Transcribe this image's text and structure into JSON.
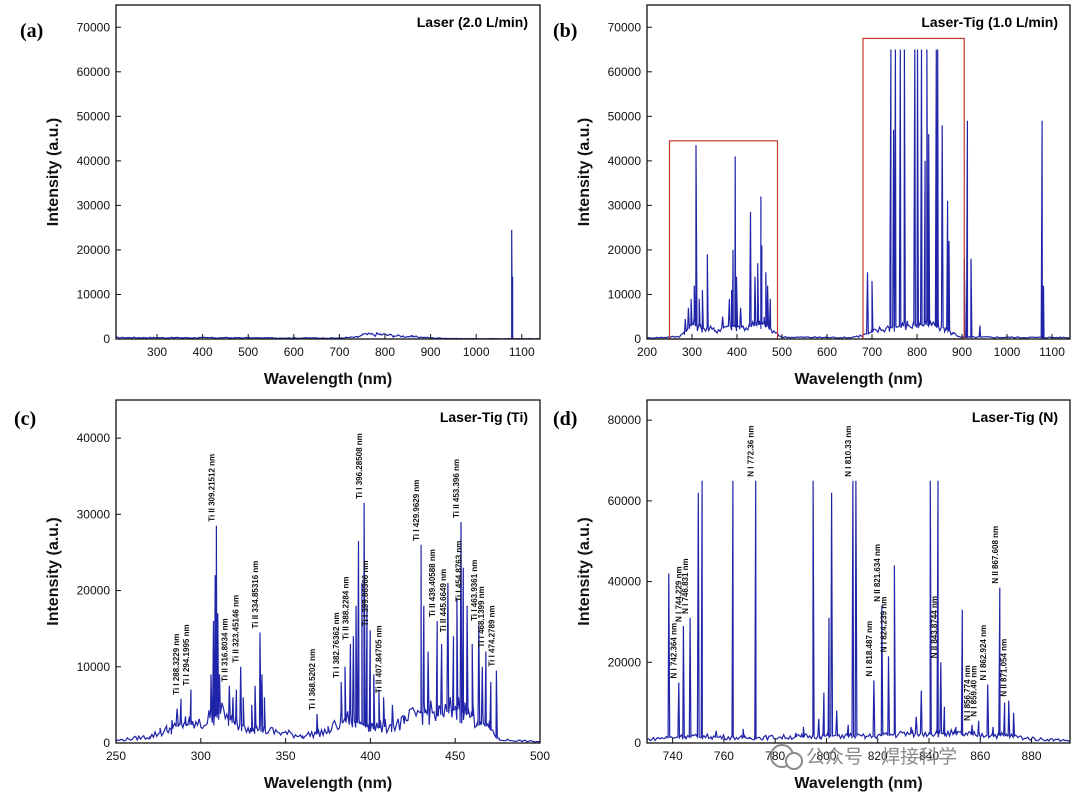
{
  "watermark": "公众号 · 焊接科学",
  "colors": {
    "line": "#1f24a8",
    "box": "#c0392b",
    "axis": "#111111",
    "watermark": "#8a8a8a"
  },
  "chart_data": [
    {
      "letter": "(a)",
      "type": "line",
      "title": "Laser (2.0 L/min)",
      "xlabel": "Wavelength (nm)",
      "ylabel": "Intensity (a.u.)",
      "xlim": [
        210,
        1140
      ],
      "ylim": [
        0,
        75000
      ],
      "xticks": [
        300,
        400,
        500,
        600,
        700,
        800,
        900,
        1000,
        1100
      ],
      "yticks": [
        0,
        10000,
        20000,
        30000,
        40000,
        50000,
        60000,
        70000
      ],
      "baseline": [
        [
          210,
          300
        ],
        [
          700,
          200
        ],
        [
          740,
          400
        ],
        [
          750,
          900
        ],
        [
          790,
          1000
        ],
        [
          820,
          700
        ],
        [
          860,
          500
        ],
        [
          900,
          250
        ],
        [
          950,
          100
        ],
        [
          1000,
          60
        ],
        [
          1140,
          60
        ]
      ],
      "peaks": [
        [
          1078,
          24500
        ],
        [
          1080,
          14000
        ]
      ],
      "boxes": [],
      "annotations": []
    },
    {
      "letter": "(b)",
      "type": "line",
      "title": "Laser-Tig (1.0 L/min)",
      "xlabel": "Wavelength (nm)",
      "ylabel": "Intensity (a.u.)",
      "xlim": [
        200,
        1140
      ],
      "ylim": [
        0,
        75000
      ],
      "xticks": [
        200,
        300,
        400,
        500,
        600,
        700,
        800,
        900,
        1000,
        1100
      ],
      "yticks": [
        0,
        10000,
        20000,
        30000,
        40000,
        50000,
        60000,
        70000
      ],
      "baseline": [
        [
          200,
          200
        ],
        [
          270,
          500
        ],
        [
          290,
          2000
        ],
        [
          300,
          3500
        ],
        [
          320,
          2500
        ],
        [
          350,
          1800
        ],
        [
          380,
          3000
        ],
        [
          420,
          2500
        ],
        [
          460,
          3500
        ],
        [
          480,
          1500
        ],
        [
          500,
          400
        ],
        [
          650,
          300
        ],
        [
          680,
          800
        ],
        [
          700,
          1500
        ],
        [
          740,
          2500
        ],
        [
          780,
          3000
        ],
        [
          820,
          3200
        ],
        [
          860,
          2500
        ],
        [
          880,
          1200
        ],
        [
          900,
          400
        ],
        [
          1140,
          300
        ]
      ],
      "peaks": [
        [
          285,
          4500
        ],
        [
          292,
          7000
        ],
        [
          298,
          9000
        ],
        [
          305,
          12000
        ],
        [
          309,
          43500
        ],
        [
          316,
          9000
        ],
        [
          323,
          11000
        ],
        [
          334,
          19000
        ],
        [
          368,
          5000
        ],
        [
          383,
          9000
        ],
        [
          388,
          11000
        ],
        [
          391,
          20000
        ],
        [
          396,
          41000
        ],
        [
          399,
          14000
        ],
        [
          408,
          7000
        ],
        [
          430,
          28500
        ],
        [
          440,
          14000
        ],
        [
          446,
          17000
        ],
        [
          453,
          32000
        ],
        [
          455,
          21000
        ],
        [
          464,
          15000
        ],
        [
          468,
          12000
        ],
        [
          474,
          9000
        ],
        [
          690,
          15000
        ],
        [
          700,
          13000
        ],
        [
          740,
          17000
        ],
        [
          742,
          65000
        ],
        [
          748,
          47000
        ],
        [
          752,
          65000
        ],
        [
          763,
          65000
        ],
        [
          772,
          65000
        ],
        [
          795,
          65000
        ],
        [
          801,
          65000
        ],
        [
          810,
          65000
        ],
        [
          818,
          40000
        ],
        [
          822,
          65000
        ],
        [
          826,
          46000
        ],
        [
          843,
          65000
        ],
        [
          846,
          65000
        ],
        [
          856,
          48000
        ],
        [
          868,
          31000
        ],
        [
          871,
          22000
        ],
        [
          905,
          18000
        ],
        [
          912,
          49000
        ],
        [
          920,
          18000
        ],
        [
          940,
          3000
        ],
        [
          1078,
          49000
        ],
        [
          1081,
          12000
        ]
      ],
      "boxes": [
        {
          "x": [
            250,
            490
          ],
          "y": [
            0,
            44500
          ]
        },
        {
          "x": [
            680,
            905
          ],
          "y": [
            0,
            67500
          ]
        }
      ],
      "annotations": []
    },
    {
      "letter": "(c)",
      "type": "line",
      "title": "Laser-Tig (Ti)",
      "xlabel": "Wavelength (nm)",
      "ylabel": "Intensity (a.u.)",
      "xlim": [
        250,
        500
      ],
      "ylim": [
        0,
        45000
      ],
      "xticks": [
        250,
        300,
        350,
        400,
        450,
        500
      ],
      "yticks": [
        0,
        10000,
        20000,
        30000,
        40000
      ],
      "baseline": [
        [
          250,
          300
        ],
        [
          270,
          800
        ],
        [
          280,
          1600
        ],
        [
          290,
          2500
        ],
        [
          300,
          2200
        ],
        [
          310,
          4000
        ],
        [
          320,
          2500
        ],
        [
          330,
          2000
        ],
        [
          340,
          1500
        ],
        [
          360,
          900
        ],
        [
          375,
          1500
        ],
        [
          385,
          3000
        ],
        [
          395,
          2500
        ],
        [
          405,
          2000
        ],
        [
          420,
          2500
        ],
        [
          430,
          4000
        ],
        [
          440,
          3500
        ],
        [
          450,
          4500
        ],
        [
          460,
          3500
        ],
        [
          470,
          2000
        ],
        [
          476,
          400
        ],
        [
          500,
          150
        ]
      ],
      "peaks": [
        [
          276,
          2000
        ],
        [
          283,
          3000
        ],
        [
          286,
          4500
        ],
        [
          288.3,
          5800
        ],
        [
          291,
          3500
        ],
        [
          294.2,
          7000
        ],
        [
          306,
          9000
        ],
        [
          307.5,
          16000
        ],
        [
          308.5,
          22000
        ],
        [
          309.2,
          28500
        ],
        [
          310,
          17000
        ],
        [
          311,
          9000
        ],
        [
          316.8,
          7500
        ],
        [
          319,
          6000
        ],
        [
          321,
          7000
        ],
        [
          323.5,
          10000
        ],
        [
          325,
          6000
        ],
        [
          330,
          5000
        ],
        [
          332,
          7500
        ],
        [
          334.9,
          14500
        ],
        [
          336,
          9000
        ],
        [
          337.5,
          6000
        ],
        [
          368.5,
          3800
        ],
        [
          382.8,
          8000
        ],
        [
          385,
          10000
        ],
        [
          388.2,
          13000
        ],
        [
          390,
          14000
        ],
        [
          391.5,
          18000
        ],
        [
          393,
          26500
        ],
        [
          395,
          21000
        ],
        [
          396.3,
          31500
        ],
        [
          398,
          18000
        ],
        [
          399.9,
          14800
        ],
        [
          402,
          9000
        ],
        [
          405,
          7000
        ],
        [
          407.8,
          6000
        ],
        [
          413,
          5000
        ],
        [
          429.9,
          26000
        ],
        [
          431.5,
          18000
        ],
        [
          434,
          12000
        ],
        [
          439.4,
          16000
        ],
        [
          442,
          13000
        ],
        [
          445.7,
          21000
        ],
        [
          449,
          14000
        ],
        [
          451,
          19000
        ],
        [
          453.4,
          29000
        ],
        [
          454.8,
          23000
        ],
        [
          457,
          18000
        ],
        [
          460,
          13000
        ],
        [
          463.9,
          15500
        ],
        [
          466,
          10000
        ],
        [
          468.1,
          12000
        ],
        [
          471,
          8000
        ],
        [
          474.3,
          9500
        ]
      ],
      "boxes": [],
      "annotations": [
        {
          "x": 288.3229,
          "y": 5800,
          "label": "Ti I 288.3229 nm"
        },
        {
          "x": 294.1995,
          "y": 7000,
          "label": "Ti I 294.1995 nm"
        },
        {
          "x": 309.21512,
          "y": 28500,
          "label": "Ti II 309.21512 nm"
        },
        {
          "x": 316.8034,
          "y": 7500,
          "label": "Ti II 316.8034 nm"
        },
        {
          "x": 323.45146,
          "y": 10000,
          "label": "Ti II 323.45146 nm"
        },
        {
          "x": 334.85316,
          "y": 14500,
          "label": "Ti II 334.85316 nm"
        },
        {
          "x": 368.5202,
          "y": 3800,
          "label": "Ti I 368.5202 nm"
        },
        {
          "x": 382.76362,
          "y": 8000,
          "label": "Ti I 382.76362 nm"
        },
        {
          "x": 388.2284,
          "y": 13000,
          "label": "Ti II 388.2284 nm"
        },
        {
          "x": 396.28508,
          "y": 31500,
          "label": "Ti I 396.28508 nm"
        },
        {
          "x": 399.86366,
          "y": 14800,
          "label": "Ti I 399.86366 nm"
        },
        {
          "x": 407.84705,
          "y": 6000,
          "label": "Ti II 407.84705 nm"
        },
        {
          "x": 429.9629,
          "y": 26000,
          "label": "Ti I 429.9629 nm"
        },
        {
          "x": 439.40588,
          "y": 16000,
          "label": "Ti II 439.40588 nm"
        },
        {
          "x": 445.6649,
          "y": 14000,
          "label": "Ti II 445.6649 nm"
        },
        {
          "x": 453.396,
          "y": 29000,
          "label": "Ti II 453.396 nm"
        },
        {
          "x": 454.8763,
          "y": 18000,
          "label": "Ti I 454.8763 nm"
        },
        {
          "x": 463.9361,
          "y": 15500,
          "label": "Ti I 463.9361 nm"
        },
        {
          "x": 468.1399,
          "y": 12000,
          "label": "Ti I 468.1399 nm"
        },
        {
          "x": 474.2789,
          "y": 9500,
          "label": "Ti I 474.2789 nm"
        }
      ]
    },
    {
      "letter": "(d)",
      "type": "line",
      "title": "Laser-Tig (N)",
      "xlabel": "Wavelength (nm)",
      "ylabel": "Intensity (a.u.)",
      "xlim": [
        730,
        895
      ],
      "ylim": [
        0,
        85000
      ],
      "xticks": [
        740,
        760,
        780,
        800,
        820,
        840,
        860,
        880
      ],
      "yticks": [
        0,
        20000,
        40000,
        60000,
        80000
      ],
      "baseline": [
        [
          730,
          800
        ],
        [
          736,
          1200
        ],
        [
          745,
          1500
        ],
        [
          755,
          1500
        ],
        [
          770,
          1200
        ],
        [
          790,
          1500
        ],
        [
          805,
          1800
        ],
        [
          815,
          1500
        ],
        [
          825,
          2000
        ],
        [
          840,
          2500
        ],
        [
          855,
          2000
        ],
        [
          870,
          1800
        ],
        [
          880,
          1000
        ],
        [
          895,
          600
        ]
      ],
      "peaks": [
        [
          738.5,
          42000
        ],
        [
          742.4,
          15000
        ],
        [
          744.2,
          29000
        ],
        [
          746.8,
          31000
        ],
        [
          750,
          62000
        ],
        [
          751.5,
          65000
        ],
        [
          757,
          3000
        ],
        [
          763.5,
          65000
        ],
        [
          767.5,
          3500
        ],
        [
          772.4,
          65000
        ],
        [
          788,
          2500
        ],
        [
          791,
          4000
        ],
        [
          794.8,
          65000
        ],
        [
          797,
          6000
        ],
        [
          799,
          12500
        ],
        [
          801,
          31000
        ],
        [
          802,
          62000
        ],
        [
          804,
          8000
        ],
        [
          808.5,
          4500
        ],
        [
          810.3,
          65000
        ],
        [
          811.5,
          65000
        ],
        [
          818.5,
          15500
        ],
        [
          821.6,
          34000
        ],
        [
          824.2,
          21500
        ],
        [
          826.5,
          44000
        ],
        [
          833,
          4000
        ],
        [
          835,
          6500
        ],
        [
          837,
          13000
        ],
        [
          840.5,
          65000
        ],
        [
          843.5,
          65000
        ],
        [
          844.6,
          20000
        ],
        [
          846,
          9000
        ],
        [
          850.5,
          4000
        ],
        [
          853,
          33000
        ],
        [
          856.8,
          4500
        ],
        [
          859.4,
          5500
        ],
        [
          862.9,
          14500
        ],
        [
          865,
          4000
        ],
        [
          867.6,
          38500
        ],
        [
          869.5,
          10000
        ],
        [
          871.1,
          10500
        ],
        [
          873,
          7500
        ]
      ],
      "boxes": [],
      "annotations": [
        {
          "x": 742.364,
          "y": 15000,
          "label": "N I 742.364 nm"
        },
        {
          "x": 744.229,
          "y": 29000,
          "label": "N I 744.229 nm"
        },
        {
          "x": 746.831,
          "y": 31000,
          "label": "N I 746.831 nm"
        },
        {
          "x": 772.36,
          "y": 65000,
          "label": "N I 772.36 nm"
        },
        {
          "x": 810.33,
          "y": 65000,
          "label": "N I 810.33 nm"
        },
        {
          "x": 818.487,
          "y": 15500,
          "label": "N I 818.487 nm"
        },
        {
          "x": 821.634,
          "y": 34000,
          "label": "N II 821.634 nm"
        },
        {
          "x": 824.239,
          "y": 21500,
          "label": "N I 824.239 nm"
        },
        {
          "x": 843.8744,
          "y": 20000,
          "label": "N II 843.8744 nm"
        },
        {
          "x": 856.774,
          "y": 4500,
          "label": "N I 856.774 nm"
        },
        {
          "x": 859.4,
          "y": 5500,
          "label": "N I 859.40 nm"
        },
        {
          "x": 862.924,
          "y": 14500,
          "label": "N I 862.924 nm"
        },
        {
          "x": 867.608,
          "y": 38500,
          "label": "N II 867.608 nm"
        },
        {
          "x": 871.054,
          "y": 10500,
          "label": "N II 871.054 nm"
        }
      ]
    }
  ]
}
